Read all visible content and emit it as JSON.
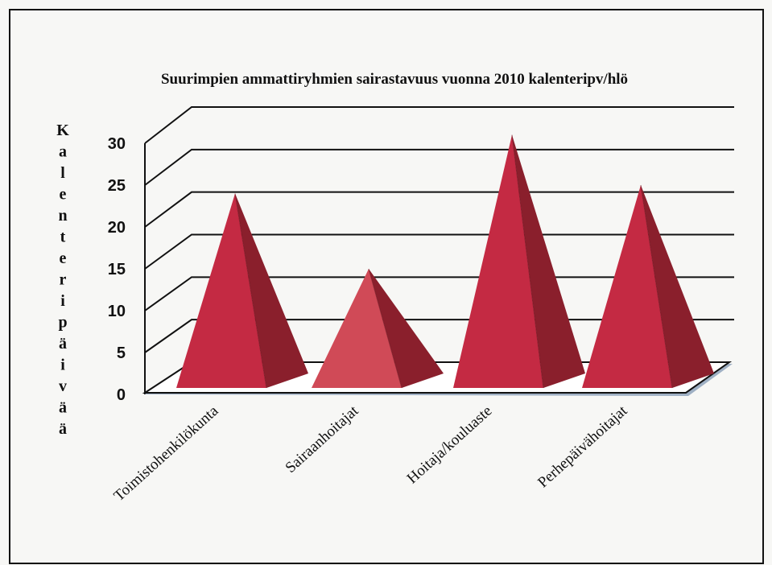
{
  "chart_data": {
    "type": "bar",
    "style": "3d-pyramid",
    "title": "Suurimpien  ammattiryhmien  sairastavuus vuonna 2010 kalenteripv/hlö",
    "ylabel": "Kalenteripäivää",
    "xlabel": "",
    "categories": [
      "Toimistohenkilökunta",
      "Sairaanhoitajat",
      "Hoitaja/kouluaste",
      "Perhepäivähoitajat"
    ],
    "values": [
      24,
      15,
      31,
      25
    ],
    "ylim": [
      0,
      30
    ],
    "yticks": [
      "0",
      "5",
      "10",
      "15",
      "20",
      "25",
      "30"
    ],
    "grid": true,
    "legend": "none",
    "colors": {
      "pyramid_front": "#c42a43",
      "pyramid_side": "#8a1f2c",
      "pyramid_front_light": "#d04a57",
      "floor": "#ffffff",
      "floor_shadow": "#9fb0c4",
      "grid": "#111111"
    }
  }
}
